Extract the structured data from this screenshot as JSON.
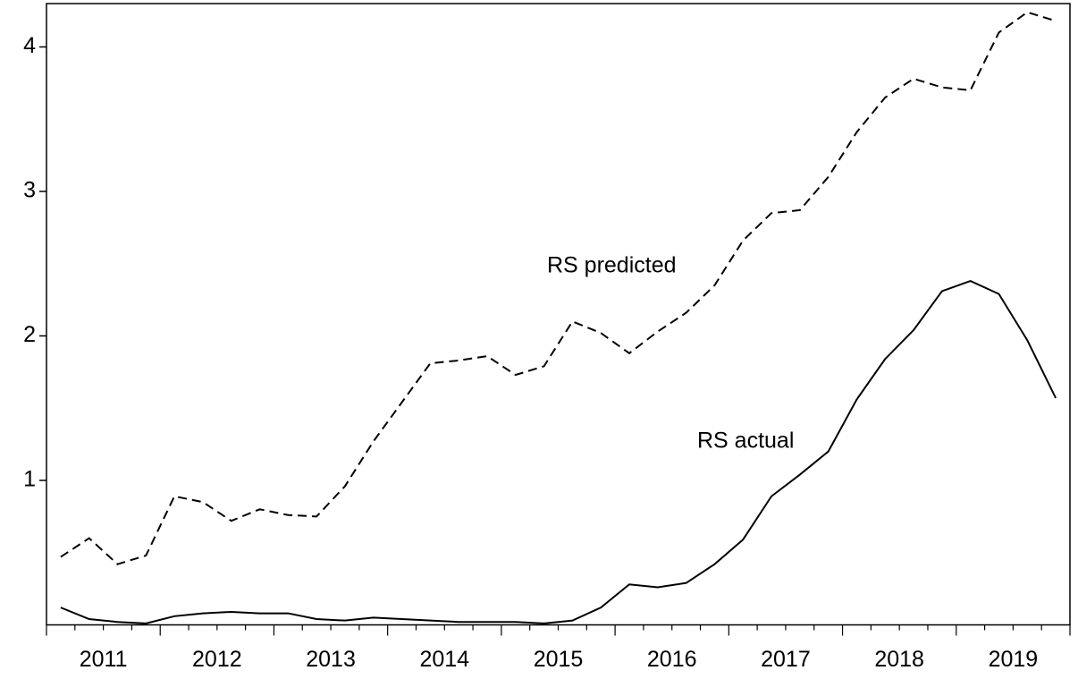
{
  "chart_data": {
    "type": "line",
    "categories": [
      "2011",
      null,
      null,
      null,
      "2012",
      null,
      null,
      null,
      "2013",
      null,
      null,
      null,
      "2014",
      null,
      null,
      null,
      "2015",
      null,
      null,
      null,
      "2016",
      null,
      null,
      null,
      "2017",
      null,
      null,
      null,
      "2018",
      null,
      null,
      null,
      "2019",
      null,
      null,
      null
    ],
    "series": [
      {
        "name": "RS predicted",
        "color": "#000000",
        "dashed": true,
        "values": [
          0.47,
          0.6,
          0.42,
          0.48,
          0.89,
          0.85,
          0.72,
          0.8,
          0.76,
          0.75,
          0.96,
          1.27,
          1.54,
          1.81,
          1.83,
          1.86,
          1.73,
          1.79,
          2.1,
          2.02,
          1.88,
          2.03,
          2.16,
          2.35,
          2.66,
          2.85,
          2.87,
          3.1,
          3.41,
          3.65,
          3.78,
          3.72,
          3.7,
          4.1,
          4.24,
          4.18
        ]
      },
      {
        "name": "RS actual",
        "color": "#000000",
        "dashed": false,
        "values": [
          0.12,
          0.04,
          0.02,
          0.01,
          0.06,
          0.08,
          0.09,
          0.08,
          0.08,
          0.04,
          0.03,
          0.05,
          0.04,
          0.03,
          0.02,
          0.02,
          0.02,
          0.01,
          0.03,
          0.12,
          0.28,
          0.26,
          0.29,
          0.42,
          0.59,
          0.89,
          1.04,
          1.2,
          1.56,
          1.84,
          2.04,
          2.31,
          2.38,
          2.29,
          1.97,
          1.57
        ]
      }
    ],
    "ylim": [
      0,
      4.3
    ],
    "yticks": [
      1,
      2,
      3,
      4
    ],
    "grid": false
  }
}
